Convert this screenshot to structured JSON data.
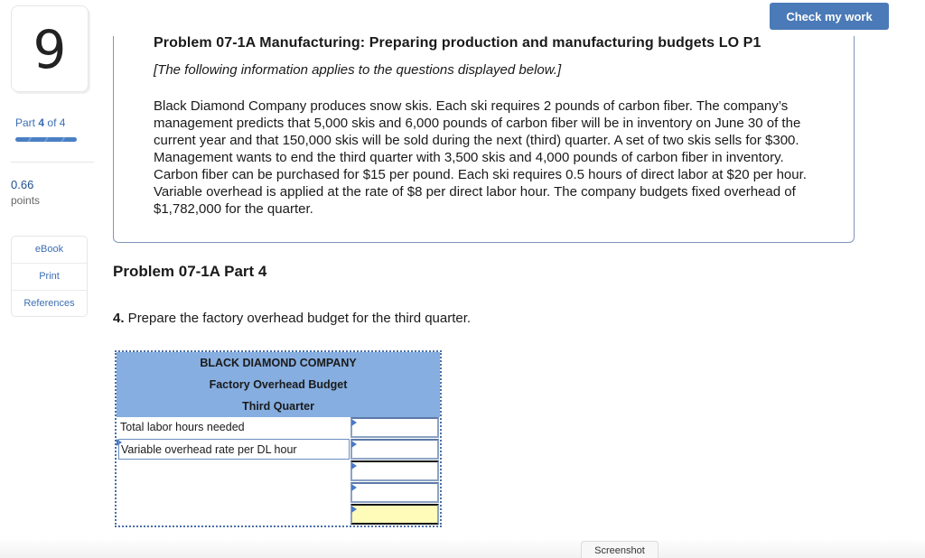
{
  "sidebar": {
    "question_number": "9",
    "part_prefix": "Part",
    "part_current": "4",
    "part_of": "of 4",
    "points_value": "0.66",
    "points_label": "points",
    "tools": [
      {
        "label": "eBook"
      },
      {
        "label": "Print"
      },
      {
        "label": "References"
      }
    ]
  },
  "header": {
    "check_button_label": "Check my work"
  },
  "problem": {
    "title": "Problem 07-1A Manufacturing: Preparing production and manufacturing budgets LO P1",
    "note": "[The following information applies to the questions displayed below.]",
    "body": "Black Diamond Company produces snow skis. Each ski requires 2 pounds of carbon fiber. The company’s management predicts that 5,000 skis and 6,000 pounds of carbon fiber will be in inventory on June 30 of the current year and that 150,000 skis will be sold during the next (third) quarter. A set of two skis sells for $300. Management wants to end the third quarter with 3,500 skis and 4,000 pounds of carbon fiber in inventory. Carbon fiber can be purchased for $15 per pound. Each ski requires 0.5 hours of direct labor at $20 per hour. Variable overhead is applied at the rate of $8 per direct labor hour. The company budgets fixed overhead of $1,782,000 for the quarter."
  },
  "part": {
    "heading": "Problem 07-1A Part 4",
    "question_number": "4.",
    "question_text": " Prepare the factory overhead budget for the third quarter."
  },
  "budget_table": {
    "header_lines": [
      "BLACK DIAMOND COMPANY",
      "Factory Overhead Budget",
      "Third Quarter"
    ],
    "rows": [
      {
        "label": "Total labor hours needed",
        "value": ""
      },
      {
        "label": "Variable overhead rate per DL hour",
        "value": ""
      },
      {
        "label": "",
        "value": ""
      },
      {
        "label": "",
        "value": ""
      },
      {
        "label": "",
        "value": ""
      }
    ],
    "colors": {
      "header_bg": "#86aee0",
      "total_cell_bg": "#fffbb8"
    }
  },
  "footer": {
    "screenshot_label": "Screenshot"
  }
}
